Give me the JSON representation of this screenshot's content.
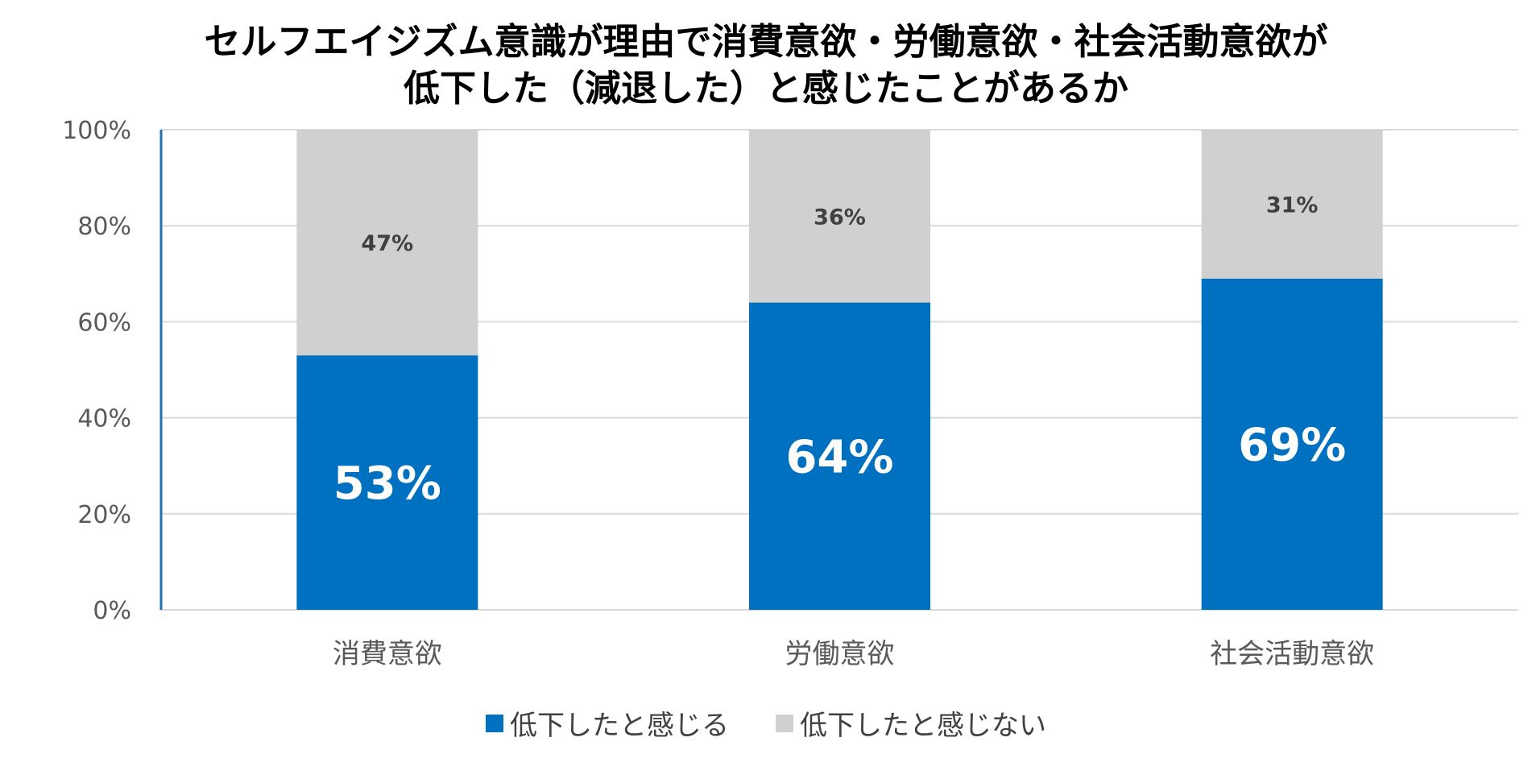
{
  "chart_data": {
    "type": "bar",
    "stacked": true,
    "title_lines": [
      "セルフエイジズム意識が理由で消費意欲・労働意欲・社会活動意欲が",
      "低下した（減退した）と感じたことがあるか"
    ],
    "categories": [
      "消費意欲",
      "労働意欲",
      "社会活動意欲"
    ],
    "series": [
      {
        "name": "低下したと感じる",
        "values": [
          53,
          64,
          69
        ],
        "color": "#0070C0",
        "labels": [
          "53%",
          "64%",
          "69%"
        ]
      },
      {
        "name": "低下したと感じない",
        "values": [
          47,
          36,
          31
        ],
        "color": "#D0D0D0",
        "labels": [
          "47%",
          "36%",
          "31%"
        ]
      }
    ],
    "y_ticks": [
      "0%",
      "20%",
      "40%",
      "60%",
      "80%",
      "100%"
    ],
    "ylim": [
      0,
      100
    ],
    "grid": true,
    "legend_position": "bottom"
  }
}
